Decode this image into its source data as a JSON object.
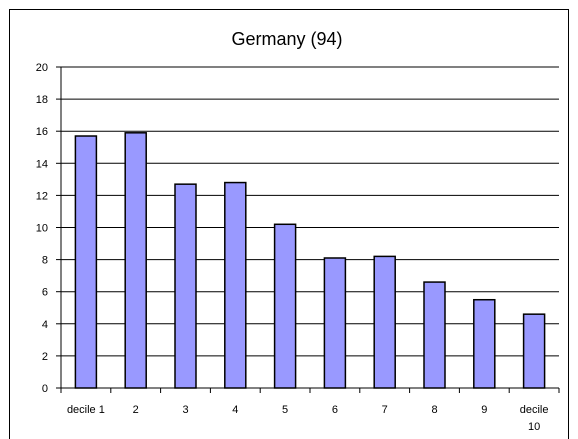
{
  "chart_data": {
    "type": "bar",
    "title": "Germany (94)",
    "categories": [
      [
        "decile 1"
      ],
      [
        "2"
      ],
      [
        "3"
      ],
      [
        "4"
      ],
      [
        "5"
      ],
      [
        "6"
      ],
      [
        "7"
      ],
      [
        "8"
      ],
      [
        "9"
      ],
      [
        "decile",
        "10"
      ]
    ],
    "series": [
      {
        "values": [
          15.7,
          15.9,
          12.7,
          12.8,
          10.2,
          8.1,
          8.2,
          6.6,
          5.5,
          4.6
        ]
      }
    ],
    "ylim": [
      0,
      20
    ],
    "yticks": [
      0,
      2,
      4,
      6,
      8,
      10,
      12,
      14,
      16,
      18,
      20
    ],
    "grid": "horizontal",
    "legend": "none",
    "colors": {
      "bar_fill": "#9999ff",
      "bar_stroke": "#000000",
      "grid": "#000000",
      "plot_background": "#ffffff"
    }
  }
}
